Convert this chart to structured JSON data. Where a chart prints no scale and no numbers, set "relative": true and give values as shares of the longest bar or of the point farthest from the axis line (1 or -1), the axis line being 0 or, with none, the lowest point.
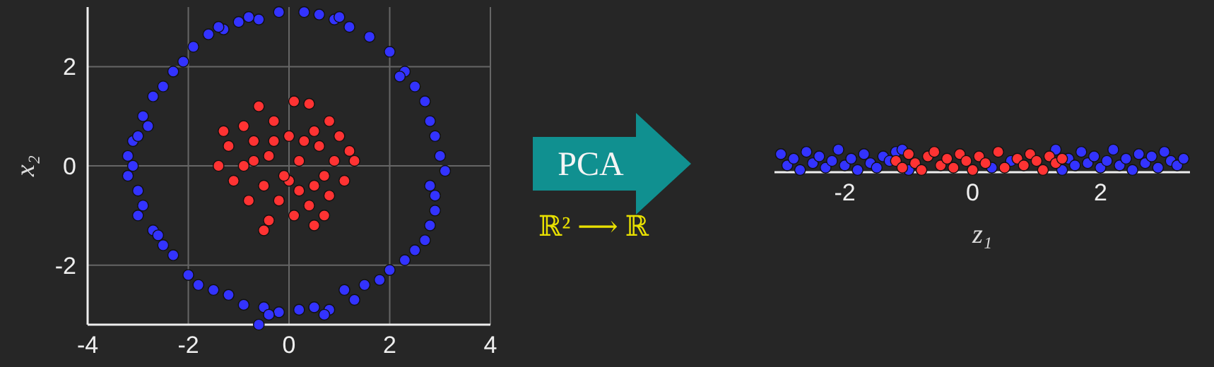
{
  "chart_data": [
    {
      "type": "scatter",
      "xlim": [
        -4,
        4
      ],
      "ylim": [
        -3.2,
        3.2
      ],
      "xticks": [
        -4,
        -2,
        0,
        2,
        4
      ],
      "yticks": [
        -2,
        0,
        2
      ],
      "ylabel": "x₂",
      "grid": true,
      "marker": "circle",
      "series": [
        {
          "color": "#3333ff",
          "x": [
            -0.2,
            0.3,
            0.6,
            0.9,
            -0.6,
            -1.0,
            -1.3,
            -1.6,
            -1.9,
            -2.1,
            -2.3,
            -2.5,
            -2.7,
            -2.9,
            -2.8,
            -3.1,
            -3.2,
            -3.1,
            -3.2,
            -3.0,
            -2.9,
            -3.0,
            -2.7,
            -2.5,
            -2.3,
            -2.0,
            -1.8,
            -1.5,
            -1.2,
            -0.9,
            -0.5,
            -0.2,
            0.2,
            0.5,
            0.8,
            1.1,
            1.5,
            1.8,
            2.0,
            2.3,
            2.5,
            2.7,
            2.8,
            2.9,
            2.9,
            2.8,
            3.1,
            3.0,
            2.9,
            2.8,
            2.7,
            2.5,
            2.3,
            2.0,
            1.6,
            1.2,
            -0.6,
            -0.4,
            0.7,
            1.3,
            -3.0,
            -2.6,
            2.2,
            1.0,
            -1.4,
            -0.8
          ],
          "values": [
            3.1,
            3.1,
            3.05,
            2.95,
            2.95,
            2.9,
            2.75,
            2.65,
            2.4,
            2.1,
            1.9,
            1.6,
            1.4,
            1.0,
            0.8,
            0.5,
            0.2,
            0,
            -0.2,
            -0.5,
            -0.8,
            -1.0,
            -1.3,
            -1.6,
            -1.8,
            -2.2,
            -2.4,
            -2.5,
            -2.6,
            -2.8,
            -2.85,
            -2.95,
            -2.9,
            -2.85,
            -2.9,
            -2.5,
            -2.4,
            -2.3,
            -2.1,
            -1.9,
            -1.7,
            -1.5,
            -1.2,
            -0.9,
            -0.6,
            -0.4,
            -0.1,
            0.2,
            0.6,
            0.9,
            1.3,
            1.6,
            1.9,
            2.3,
            2.6,
            2.8,
            -3.2,
            -3.0,
            -3.0,
            -2.7,
            0.6,
            -1.4,
            1.8,
            3.0,
            2.8,
            3.0
          ]
        },
        {
          "color": "#ff3333",
          "x": [
            -0.6,
            0.1,
            0.4,
            0.8,
            -0.9,
            -0.3,
            0.5,
            1.0,
            -1.2,
            -0.7,
            0,
            0.6,
            1.3,
            -1.4,
            -0.9,
            -0.4,
            0.2,
            0.9,
            -1.1,
            -0.5,
            0,
            0.5,
            1.1,
            -0.8,
            -0.2,
            0.4,
            0.8,
            -0.4,
            0.1,
            0.5,
            0.7,
            -1.3,
            1.2,
            -0.5,
            0.3,
            -0.1,
            0.7,
            -0.7,
            0.2,
            -0.3
          ],
          "values": [
            1.2,
            1.3,
            1.25,
            0.9,
            0.8,
            0.9,
            0.7,
            0.6,
            0.4,
            0.5,
            0.6,
            0.4,
            0.1,
            0,
            0,
            0.2,
            0.1,
            0.1,
            -0.3,
            -0.4,
            -0.3,
            -0.4,
            -0.3,
            -0.7,
            -0.7,
            -0.8,
            -0.6,
            -1.1,
            -1.0,
            -1.2,
            -1.0,
            0.7,
            0.3,
            -1.3,
            0.5,
            -0.2,
            -0.2,
            0.1,
            -0.5,
            0.5
          ]
        }
      ]
    },
    {
      "type": "scatter",
      "xlim": [
        -3.1,
        3.4
      ],
      "xticks": [
        -2,
        0,
        2
      ],
      "xlabel": "z₁",
      "tick_labels": "x",
      "relative": true,
      "marker": "circle",
      "annotations": [
        "PCA",
        "ℝ² ⟶ ℝ"
      ],
      "series": [
        {
          "color": "#3333ff",
          "x": [
            -3.0,
            -2.9,
            -2.8,
            -2.7,
            -2.6,
            -2.5,
            -2.4,
            -2.3,
            -2.2,
            -2.1,
            -2.0,
            -1.9,
            -1.8,
            -1.7,
            -1.6,
            -1.5,
            -1.4,
            -1.3,
            -1.2,
            -1.1,
            -1.0,
            0.3,
            0.6,
            1.3,
            1.4,
            1.5,
            1.6,
            1.7,
            1.8,
            1.9,
            2.0,
            2.1,
            2.2,
            2.3,
            2.4,
            2.5,
            2.6,
            2.7,
            2.8,
            2.9,
            3.0,
            3.1,
            3.2,
            3.3
          ],
          "values": [
            0.8,
            0.3,
            0.6,
            0.1,
            0.9,
            0.4,
            0.7,
            0.2,
            0.5,
            1,
            0.3,
            0.6,
            0.1,
            0.8,
            0.4,
            0.2,
            0.7,
            0.5,
            0.9,
            1,
            0.1,
            0.2,
            0.5,
            1,
            0.1,
            0.6,
            0.3,
            0.9,
            0.4,
            0.7,
            0.2,
            0.5,
            1,
            0.3,
            0.6,
            0.1,
            0.8,
            0.4,
            0.7,
            0.2,
            0.9,
            0.5,
            0.3,
            0.6
          ]
        },
        {
          "color": "#ff3333",
          "x": [
            -1.2,
            -1.1,
            -1.0,
            -0.9,
            -0.8,
            -0.7,
            -0.6,
            -0.5,
            -0.4,
            -0.3,
            -0.2,
            -0.1,
            0,
            0.1,
            0.2,
            0.4,
            0.5,
            0.7,
            0.8,
            0.9,
            1.0,
            1.1,
            1.2,
            1.3,
            1.4
          ],
          "values": [
            0.5,
            0.2,
            0.8,
            0.4,
            0.1,
            0.7,
            0.9,
            0.3,
            0.6,
            0.2,
            0.8,
            0.5,
            0.1,
            0.7,
            0.4,
            0.9,
            0.2,
            0.6,
            0.3,
            0.8,
            0.5,
            0.1,
            0.7,
            0.4,
            0.6
          ]
        }
      ]
    }
  ]
}
